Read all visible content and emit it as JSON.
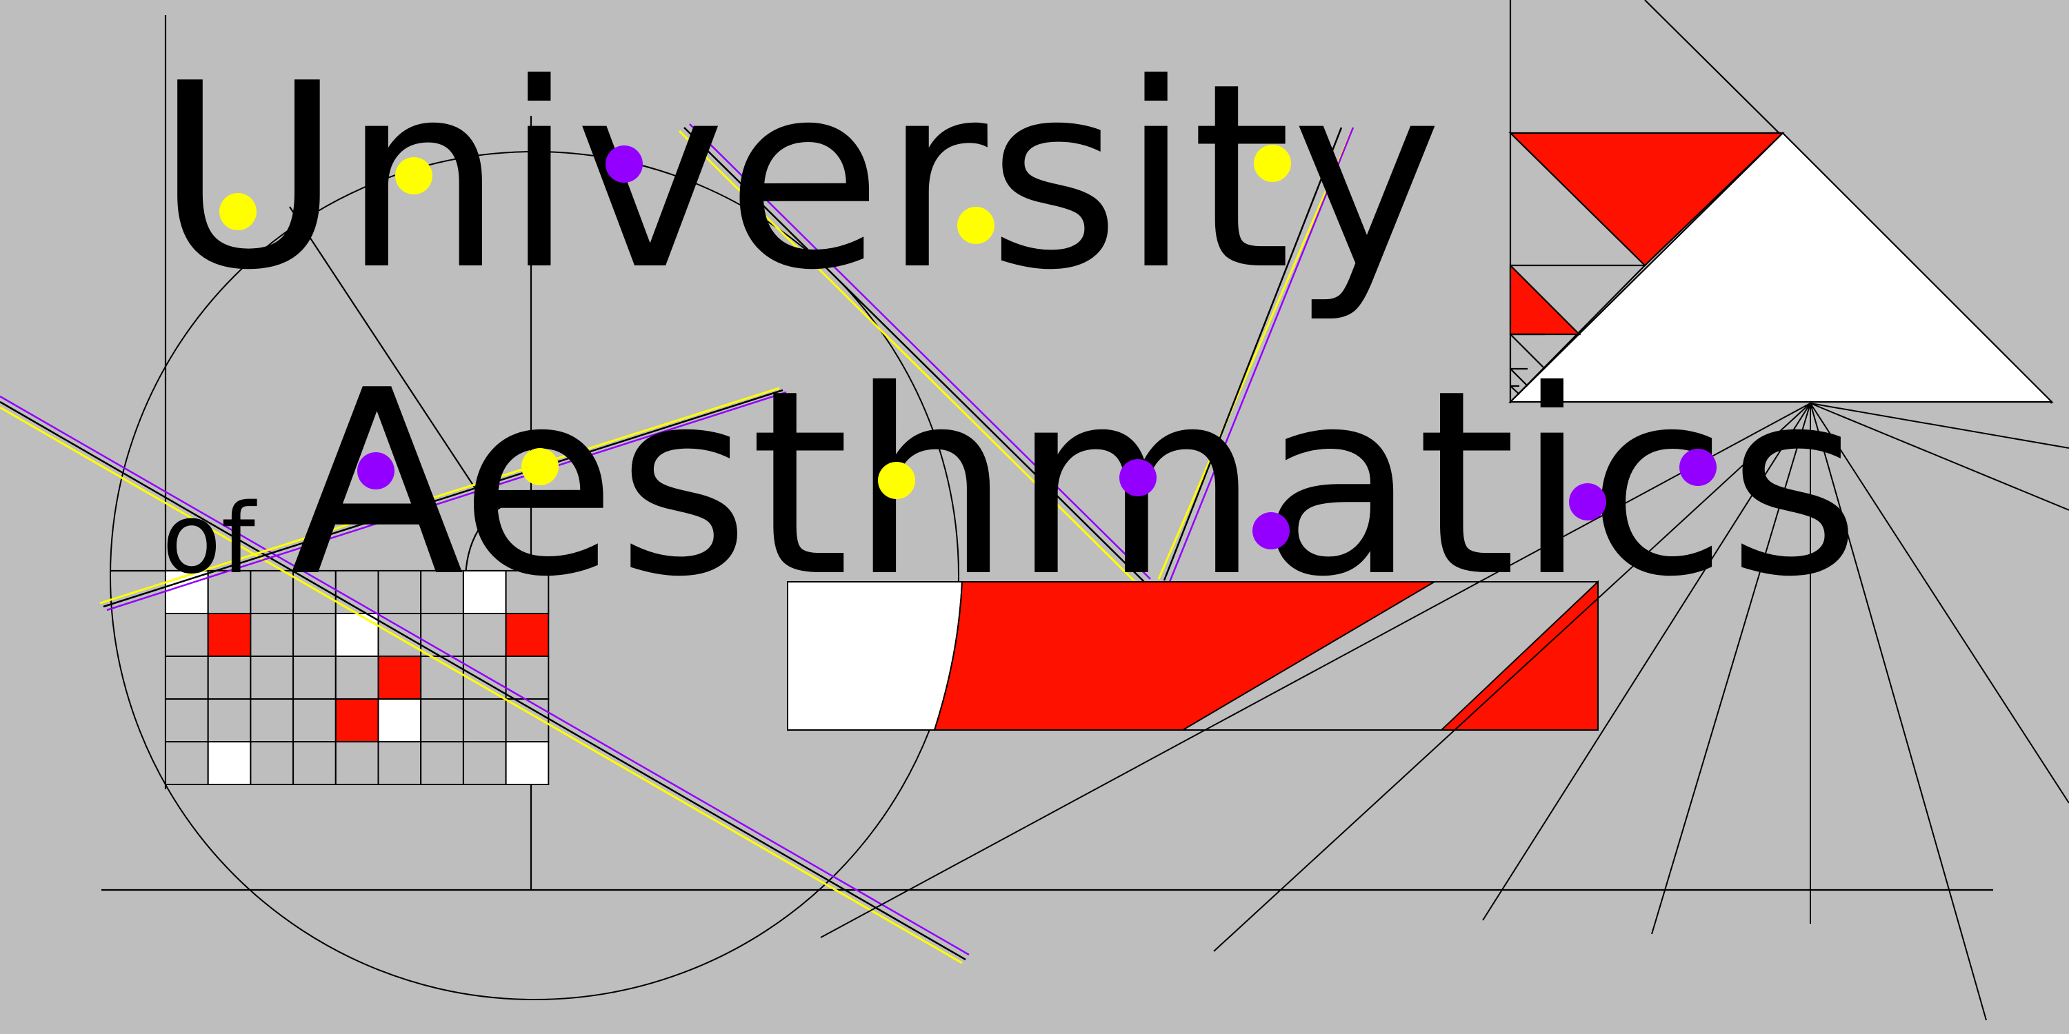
{
  "title": {
    "line1": "University",
    "small": "of",
    "line2": "Aesthmatics"
  },
  "colors": {
    "background": "#bebebe",
    "red": "#ff1100",
    "white": "#ffffff",
    "yellow": "#ffff00",
    "purple": "#9400ff",
    "line": "#000000"
  },
  "grid": {
    "rows": 5,
    "cols": 9,
    "cells": [
      [
        "white",
        "grey",
        "grey",
        "grey",
        "grey",
        "grey",
        "grey",
        "white",
        "grey"
      ],
      [
        "grey",
        "red",
        "grey",
        "grey",
        "white",
        "grey",
        "grey",
        "grey",
        "red"
      ],
      [
        "grey",
        "grey",
        "grey",
        "grey",
        "grey",
        "red",
        "grey",
        "grey",
        "grey"
      ],
      [
        "grey",
        "grey",
        "grey",
        "grey",
        "red",
        "white",
        "grey",
        "grey",
        "grey"
      ],
      [
        "grey",
        "white",
        "grey",
        "grey",
        "grey",
        "grey",
        "grey",
        "grey",
        "white"
      ]
    ]
  }
}
